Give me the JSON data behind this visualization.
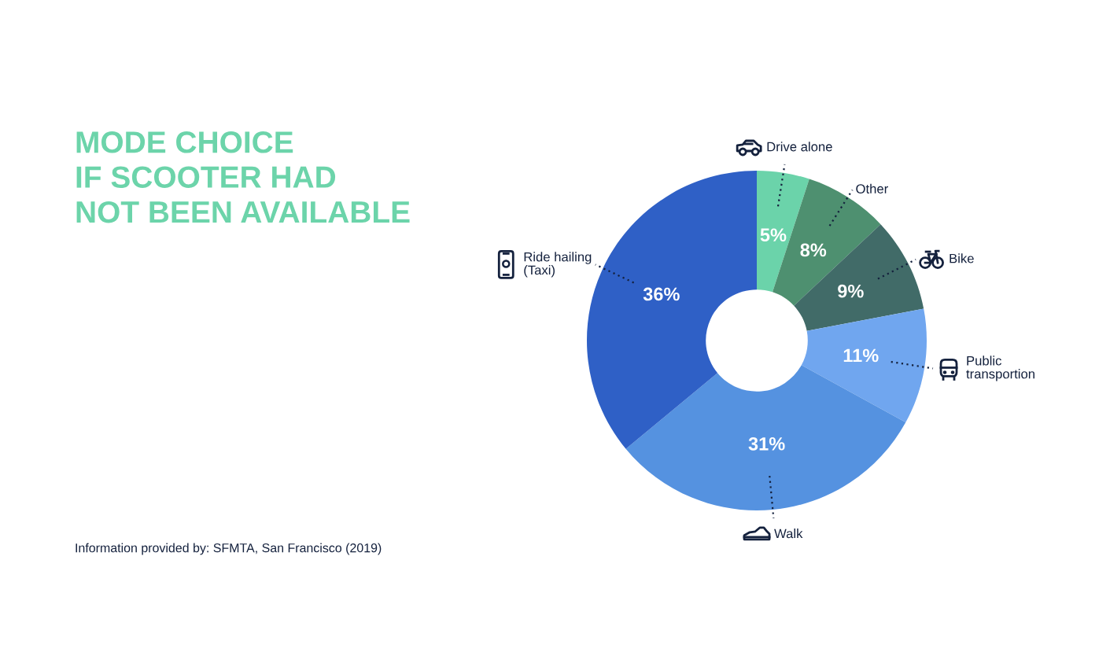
{
  "chart_data": {
    "type": "donut",
    "title": "MODE CHOICE\nIF SCOOTER HAD\nNOT BEEN AVAILABLE",
    "categories": [
      "Drive alone",
      "Other",
      "Bike",
      "Public\ntransportion",
      "Walk",
      "Ride hailing\n(Taxi)"
    ],
    "values": [
      5,
      8,
      9,
      11,
      31,
      36
    ],
    "value_labels": [
      "5%",
      "8%",
      "9%",
      "11%",
      "31%",
      "36%"
    ],
    "colors": [
      "#6bd3aa",
      "#4e9070",
      "#416b68",
      "#70a6ef",
      "#5592e0",
      "#2f60c6"
    ],
    "annotations": [
      "Information provided by: SFMTA, San Francisco (2019)"
    ]
  }
}
